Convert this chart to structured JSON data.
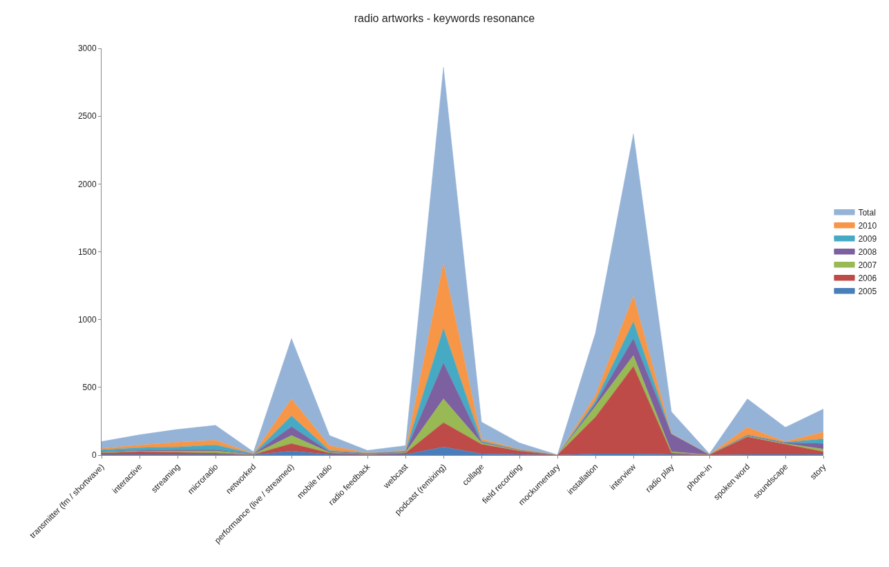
{
  "chart_data": {
    "type": "area",
    "stacked": true,
    "title": "radio artworks - keywords resonance",
    "categories": [
      "transmitter (fm / shortwave)",
      "interactive",
      "streaming",
      "microradio",
      "networked",
      "performance (live / streamed)",
      "mobile radio",
      "radio feedback",
      "webcast",
      "podcast (remixing)",
      "collage",
      "field recording",
      "mockumentary",
      "installation",
      "interview",
      "radio play",
      "phone-in",
      "spoken word",
      "soundscape",
      "story"
    ],
    "series": [
      {
        "name": "2005",
        "color": "#4a7ebb",
        "values": [
          5,
          5,
          5,
          5,
          2,
          30,
          5,
          3,
          5,
          60,
          10,
          5,
          0,
          10,
          10,
          5,
          0,
          5,
          5,
          5
        ]
      },
      {
        "name": "2006",
        "color": "#be4b48",
        "values": [
          10,
          20,
          15,
          10,
          2,
          55,
          10,
          5,
          10,
          180,
          70,
          25,
          1,
          270,
          645,
          10,
          3,
          130,
          75,
          20
        ]
      },
      {
        "name": "2007",
        "color": "#98b954",
        "values": [
          5,
          5,
          10,
          15,
          2,
          60,
          5,
          2,
          5,
          175,
          10,
          5,
          0,
          80,
          80,
          10,
          0,
          5,
          5,
          20
        ]
      },
      {
        "name": "2008",
        "color": "#7d60a0",
        "values": [
          5,
          5,
          10,
          10,
          2,
          65,
          5,
          2,
          5,
          265,
          5,
          3,
          0,
          20,
          125,
          130,
          1,
          5,
          7,
          40
        ]
      },
      {
        "name": "2009",
        "color": "#46aac5",
        "values": [
          15,
          20,
          20,
          35,
          2,
          80,
          10,
          3,
          5,
          255,
          10,
          2,
          0,
          20,
          125,
          3,
          0,
          5,
          3,
          35
        ]
      },
      {
        "name": "2010",
        "color": "#f79646",
        "values": [
          10,
          20,
          35,
          35,
          2,
          125,
          35,
          3,
          5,
          480,
          15,
          5,
          0,
          40,
          190,
          2,
          1,
          55,
          5,
          50
        ]
      },
      {
        "name": "Total",
        "color": "#95b3d7",
        "values": [
          50,
          75,
          95,
          110,
          12,
          445,
          75,
          17,
          35,
          1445,
          125,
          45,
          1,
          460,
          1195,
          160,
          5,
          210,
          105,
          170
        ]
      }
    ],
    "ylim": [
      0,
      3000
    ],
    "yticks": [
      0,
      500,
      1000,
      1500,
      2000,
      2500,
      3000
    ],
    "legend": "right"
  }
}
